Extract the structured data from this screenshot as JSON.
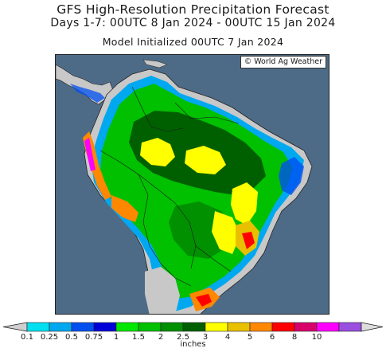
{
  "header": {
    "title": "GFS High-Resolution Precipitation Forecast",
    "subtitle": "Days 1-7: 00UTC 8 Jan 2024 - 00UTC 15 Jan 2024",
    "init_line": "Model Initialized 00UTC 7 Jan 2024"
  },
  "map": {
    "credit": "© World Ag Weather",
    "region": "South America"
  },
  "legend": {
    "units": "inches",
    "levels": [
      "0.1",
      "0.25",
      "0.5",
      "0.75",
      "1",
      "1.5",
      "2",
      "2.5",
      "3",
      "4",
      "5",
      "6",
      "8",
      "10"
    ],
    "colors": [
      "#00e0f0",
      "#00a8f0",
      "#0050f0",
      "#0000d8",
      "#00e800",
      "#00c000",
      "#009000",
      "#006000",
      "#ffff00",
      "#e8c000",
      "#ff8800",
      "#ff0000",
      "#d8006a",
      "#ff00ff",
      "#9a4fe0"
    ],
    "under_color": "#cfcfcf",
    "over_color": "#dddddd"
  },
  "palette": {
    "ocean": "#4d6b87",
    "land_dry": "#c8c8c8",
    "border": "#222222"
  }
}
